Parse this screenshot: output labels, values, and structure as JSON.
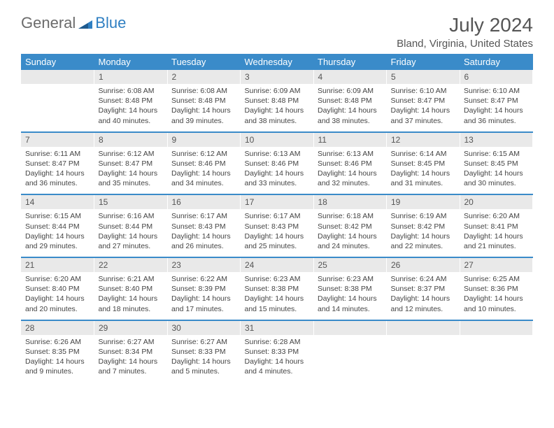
{
  "logo": {
    "general": "General",
    "blue": "Blue"
  },
  "title": "July 2024",
  "location": "Bland, Virginia, United States",
  "colors": {
    "header_bg": "#3a8bc9",
    "header_text": "#ffffff",
    "daynum_bg": "#e9e9e9",
    "text": "#444444",
    "logo_gray": "#6b6b6b",
    "logo_blue": "#2f7fc2"
  },
  "dayHeaders": [
    "Sunday",
    "Monday",
    "Tuesday",
    "Wednesday",
    "Thursday",
    "Friday",
    "Saturday"
  ],
  "weeks": [
    {
      "nums": [
        "",
        "1",
        "2",
        "3",
        "4",
        "5",
        "6"
      ],
      "cells": [
        "",
        "Sunrise: 6:08 AM\nSunset: 8:48 PM\nDaylight: 14 hours and 40 minutes.",
        "Sunrise: 6:08 AM\nSunset: 8:48 PM\nDaylight: 14 hours and 39 minutes.",
        "Sunrise: 6:09 AM\nSunset: 8:48 PM\nDaylight: 14 hours and 38 minutes.",
        "Sunrise: 6:09 AM\nSunset: 8:48 PM\nDaylight: 14 hours and 38 minutes.",
        "Sunrise: 6:10 AM\nSunset: 8:47 PM\nDaylight: 14 hours and 37 minutes.",
        "Sunrise: 6:10 AM\nSunset: 8:47 PM\nDaylight: 14 hours and 36 minutes."
      ]
    },
    {
      "nums": [
        "7",
        "8",
        "9",
        "10",
        "11",
        "12",
        "13"
      ],
      "cells": [
        "Sunrise: 6:11 AM\nSunset: 8:47 PM\nDaylight: 14 hours and 36 minutes.",
        "Sunrise: 6:12 AM\nSunset: 8:47 PM\nDaylight: 14 hours and 35 minutes.",
        "Sunrise: 6:12 AM\nSunset: 8:46 PM\nDaylight: 14 hours and 34 minutes.",
        "Sunrise: 6:13 AM\nSunset: 8:46 PM\nDaylight: 14 hours and 33 minutes.",
        "Sunrise: 6:13 AM\nSunset: 8:46 PM\nDaylight: 14 hours and 32 minutes.",
        "Sunrise: 6:14 AM\nSunset: 8:45 PM\nDaylight: 14 hours and 31 minutes.",
        "Sunrise: 6:15 AM\nSunset: 8:45 PM\nDaylight: 14 hours and 30 minutes."
      ]
    },
    {
      "nums": [
        "14",
        "15",
        "16",
        "17",
        "18",
        "19",
        "20"
      ],
      "cells": [
        "Sunrise: 6:15 AM\nSunset: 8:44 PM\nDaylight: 14 hours and 29 minutes.",
        "Sunrise: 6:16 AM\nSunset: 8:44 PM\nDaylight: 14 hours and 27 minutes.",
        "Sunrise: 6:17 AM\nSunset: 8:43 PM\nDaylight: 14 hours and 26 minutes.",
        "Sunrise: 6:17 AM\nSunset: 8:43 PM\nDaylight: 14 hours and 25 minutes.",
        "Sunrise: 6:18 AM\nSunset: 8:42 PM\nDaylight: 14 hours and 24 minutes.",
        "Sunrise: 6:19 AM\nSunset: 8:42 PM\nDaylight: 14 hours and 22 minutes.",
        "Sunrise: 6:20 AM\nSunset: 8:41 PM\nDaylight: 14 hours and 21 minutes."
      ]
    },
    {
      "nums": [
        "21",
        "22",
        "23",
        "24",
        "25",
        "26",
        "27"
      ],
      "cells": [
        "Sunrise: 6:20 AM\nSunset: 8:40 PM\nDaylight: 14 hours and 20 minutes.",
        "Sunrise: 6:21 AM\nSunset: 8:40 PM\nDaylight: 14 hours and 18 minutes.",
        "Sunrise: 6:22 AM\nSunset: 8:39 PM\nDaylight: 14 hours and 17 minutes.",
        "Sunrise: 6:23 AM\nSunset: 8:38 PM\nDaylight: 14 hours and 15 minutes.",
        "Sunrise: 6:23 AM\nSunset: 8:38 PM\nDaylight: 14 hours and 14 minutes.",
        "Sunrise: 6:24 AM\nSunset: 8:37 PM\nDaylight: 14 hours and 12 minutes.",
        "Sunrise: 6:25 AM\nSunset: 8:36 PM\nDaylight: 14 hours and 10 minutes."
      ]
    },
    {
      "nums": [
        "28",
        "29",
        "30",
        "31",
        "",
        "",
        ""
      ],
      "cells": [
        "Sunrise: 6:26 AM\nSunset: 8:35 PM\nDaylight: 14 hours and 9 minutes.",
        "Sunrise: 6:27 AM\nSunset: 8:34 PM\nDaylight: 14 hours and 7 minutes.",
        "Sunrise: 6:27 AM\nSunset: 8:33 PM\nDaylight: 14 hours and 5 minutes.",
        "Sunrise: 6:28 AM\nSunset: 8:33 PM\nDaylight: 14 hours and 4 minutes.",
        "",
        "",
        ""
      ]
    }
  ]
}
